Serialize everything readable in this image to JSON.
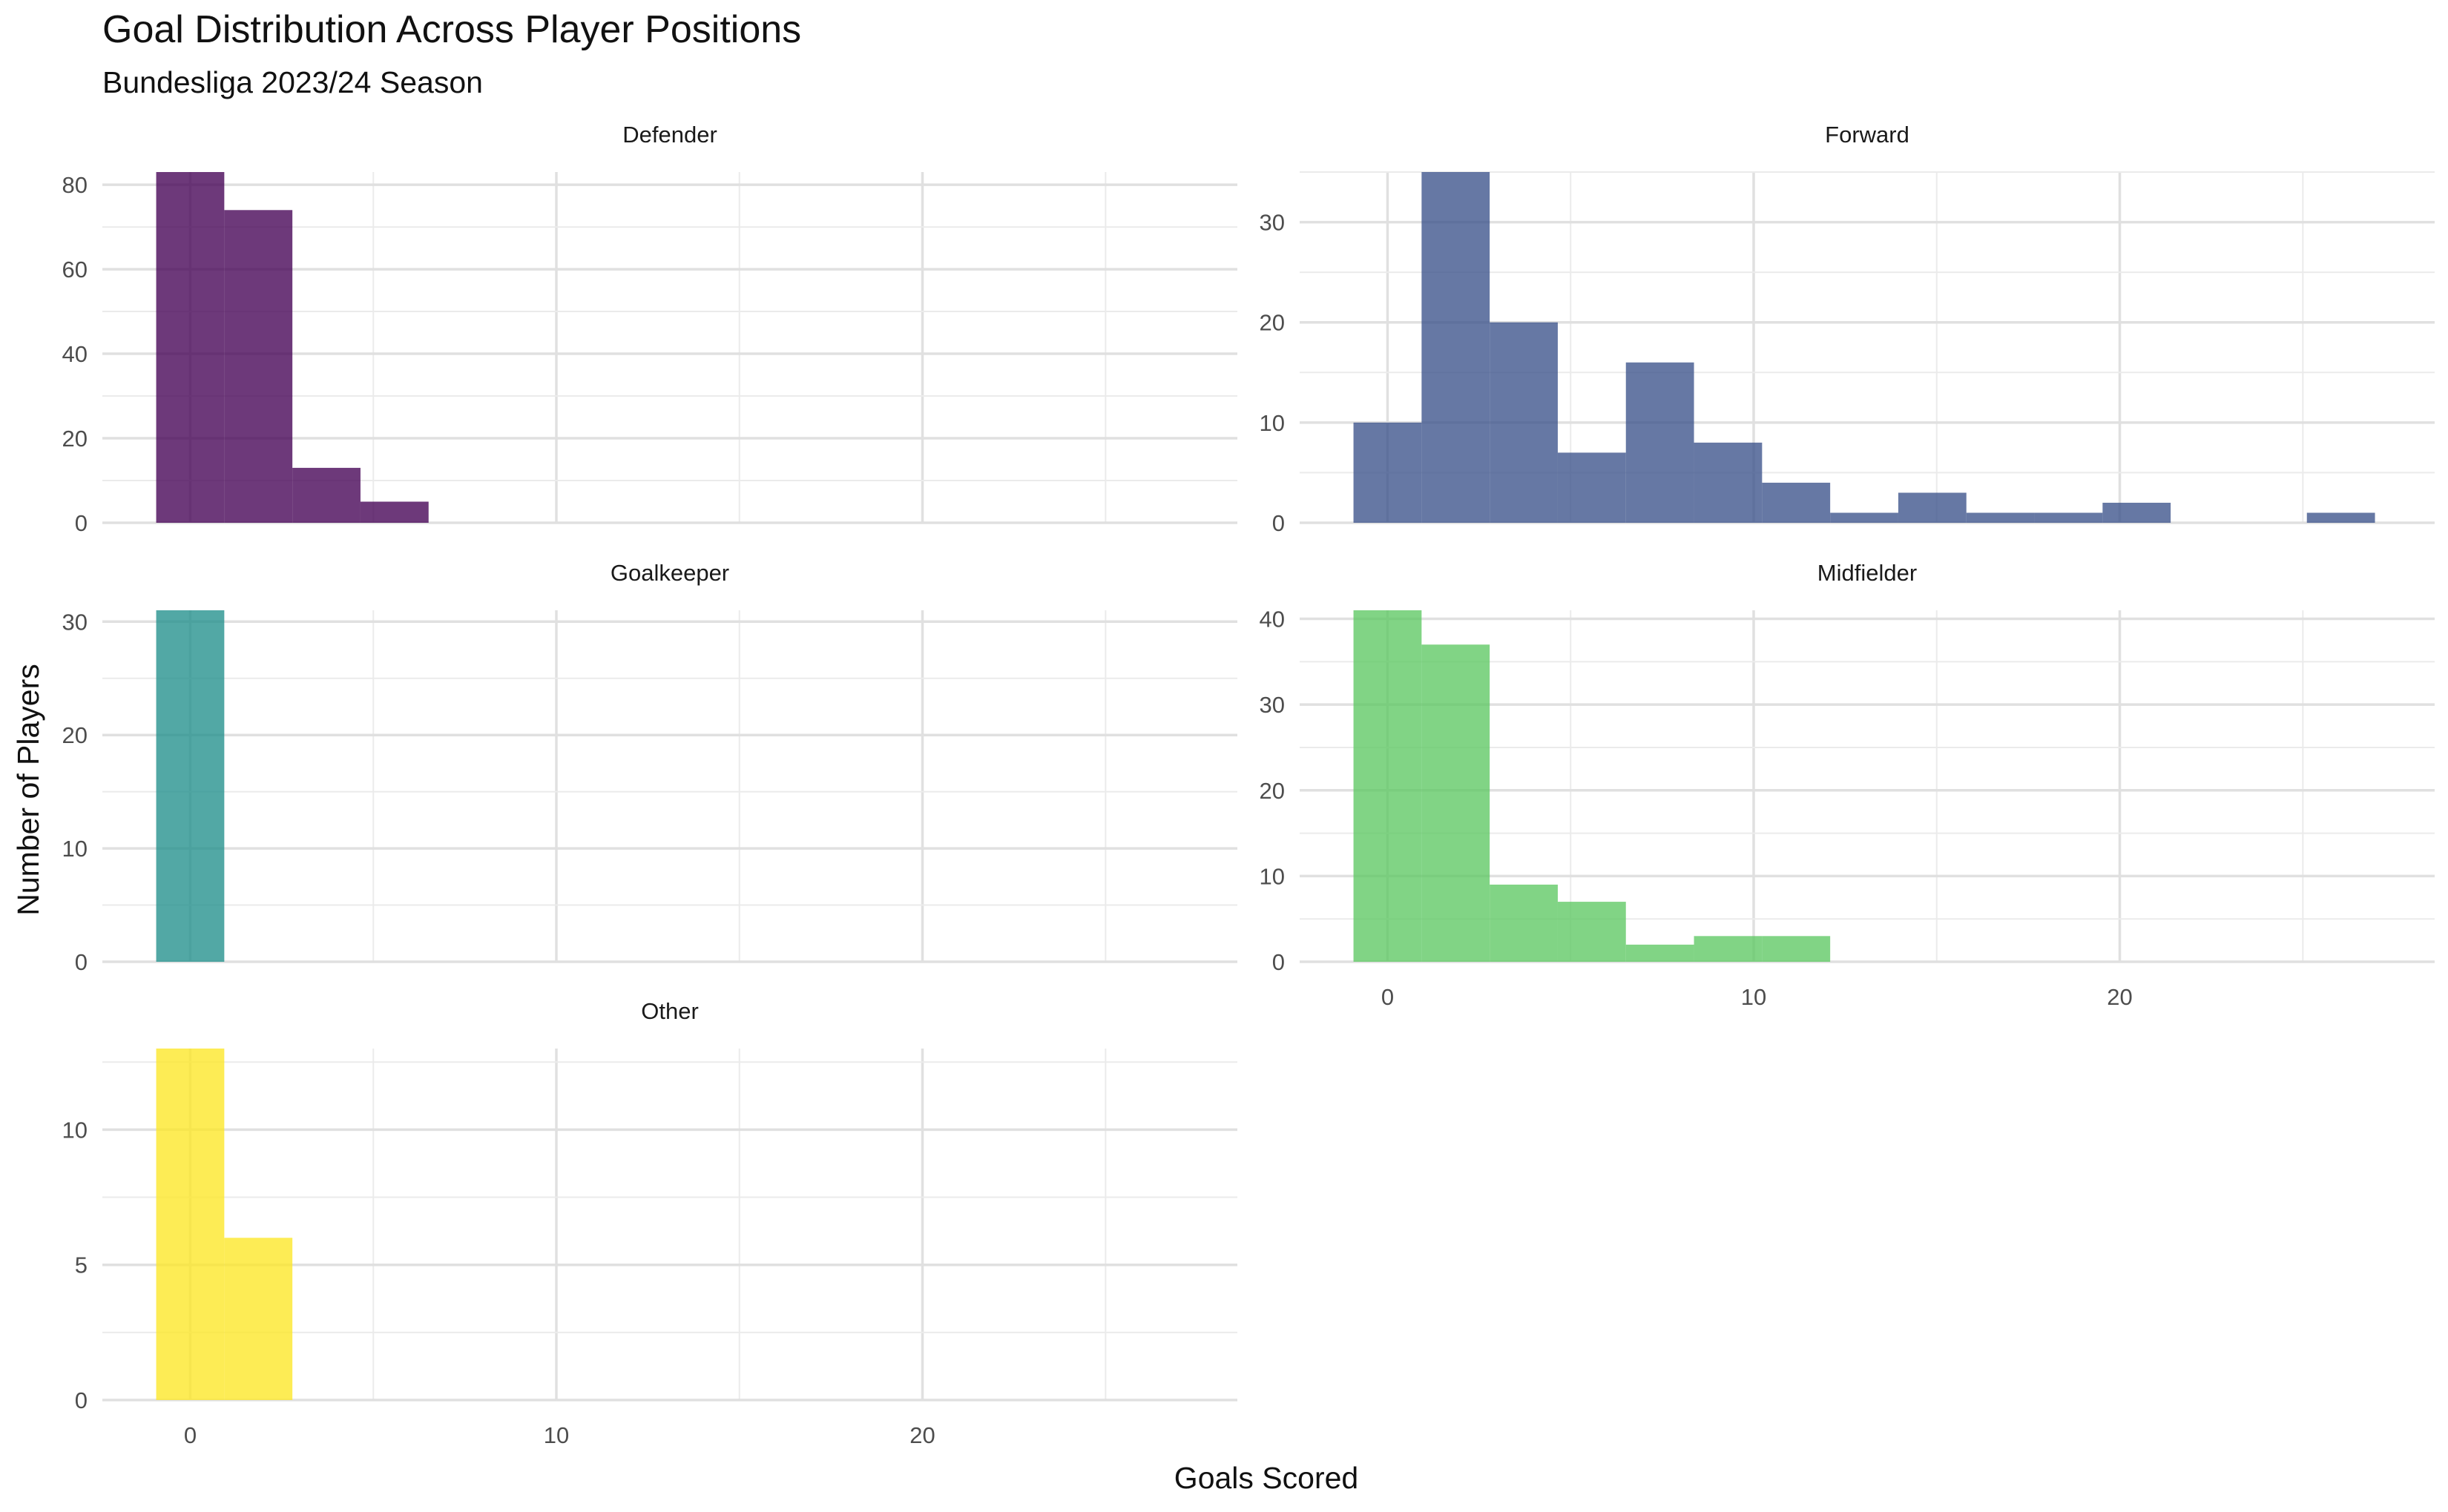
{
  "title": "Goal Distribution Across Player Positions",
  "subtitle": "Bundesliga 2023/24 Season",
  "xlabel": "Goals Scored",
  "ylabel": "Number of Players",
  "chart_data": {
    "type": "bar",
    "subtype": "faceted histogram",
    "title": "Goal Distribution Across Player Positions",
    "subtitle": "Bundesliga 2023/24 Season",
    "xlabel": "Goals Scored",
    "ylabel": "Number of Players",
    "xlim": [
      -2.4,
      28.6
    ],
    "xticks": [
      0,
      10,
      20
    ],
    "bin_width": 1.86,
    "grid": true,
    "legend": "none",
    "facets": [
      {
        "name": "Defender",
        "color": "#440154",
        "ylim": [
          0,
          83
        ],
        "yticks": [
          0,
          20,
          40,
          60,
          80
        ],
        "bins": [
          {
            "x0": -0.93,
            "x1": 0.93,
            "count": 83
          },
          {
            "x0": 0.93,
            "x1": 2.79,
            "count": 74
          },
          {
            "x0": 2.79,
            "x1": 4.65,
            "count": 13
          },
          {
            "x0": 4.65,
            "x1": 6.51,
            "count": 5
          }
        ]
      },
      {
        "name": "Forward",
        "color": "#3b528b",
        "ylim": [
          0,
          35
        ],
        "yticks": [
          0,
          10,
          20,
          30
        ],
        "bins": [
          {
            "x0": -0.93,
            "x1": 0.93,
            "count": 10
          },
          {
            "x0": 0.93,
            "x1": 2.79,
            "count": 35
          },
          {
            "x0": 2.79,
            "x1": 4.65,
            "count": 20
          },
          {
            "x0": 4.65,
            "x1": 6.51,
            "count": 7
          },
          {
            "x0": 6.51,
            "x1": 8.37,
            "count": 16
          },
          {
            "x0": 8.37,
            "x1": 10.23,
            "count": 8
          },
          {
            "x0": 10.23,
            "x1": 12.09,
            "count": 4
          },
          {
            "x0": 12.09,
            "x1": 13.95,
            "count": 1
          },
          {
            "x0": 13.95,
            "x1": 15.81,
            "count": 3
          },
          {
            "x0": 15.81,
            "x1": 17.67,
            "count": 1
          },
          {
            "x0": 17.67,
            "x1": 19.53,
            "count": 1
          },
          {
            "x0": 19.53,
            "x1": 21.39,
            "count": 2
          },
          {
            "x0": 25.11,
            "x1": 26.97,
            "count": 1
          }
        ]
      },
      {
        "name": "Goalkeeper",
        "color": "#21908c",
        "ylim": [
          0,
          31
        ],
        "yticks": [
          0,
          10,
          20,
          30
        ],
        "bins": [
          {
            "x0": -0.93,
            "x1": 0.93,
            "count": 31
          }
        ]
      },
      {
        "name": "Midfielder",
        "color": "#5dc863",
        "ylim": [
          0,
          41
        ],
        "yticks": [
          0,
          10,
          20,
          30,
          40
        ],
        "bins": [
          {
            "x0": -0.93,
            "x1": 0.93,
            "count": 41
          },
          {
            "x0": 0.93,
            "x1": 2.79,
            "count": 37
          },
          {
            "x0": 2.79,
            "x1": 4.65,
            "count": 9
          },
          {
            "x0": 4.65,
            "x1": 6.51,
            "count": 7
          },
          {
            "x0": 6.51,
            "x1": 8.37,
            "count": 2
          },
          {
            "x0": 8.37,
            "x1": 10.23,
            "count": 3
          },
          {
            "x0": 10.23,
            "x1": 12.09,
            "count": 3
          }
        ]
      },
      {
        "name": "Other",
        "color": "#fde725",
        "ylim": [
          0,
          13
        ],
        "yticks": [
          0,
          5,
          10
        ],
        "bins": [
          {
            "x0": -0.93,
            "x1": 0.93,
            "count": 13
          },
          {
            "x0": 0.93,
            "x1": 2.79,
            "count": 6
          }
        ]
      }
    ]
  }
}
